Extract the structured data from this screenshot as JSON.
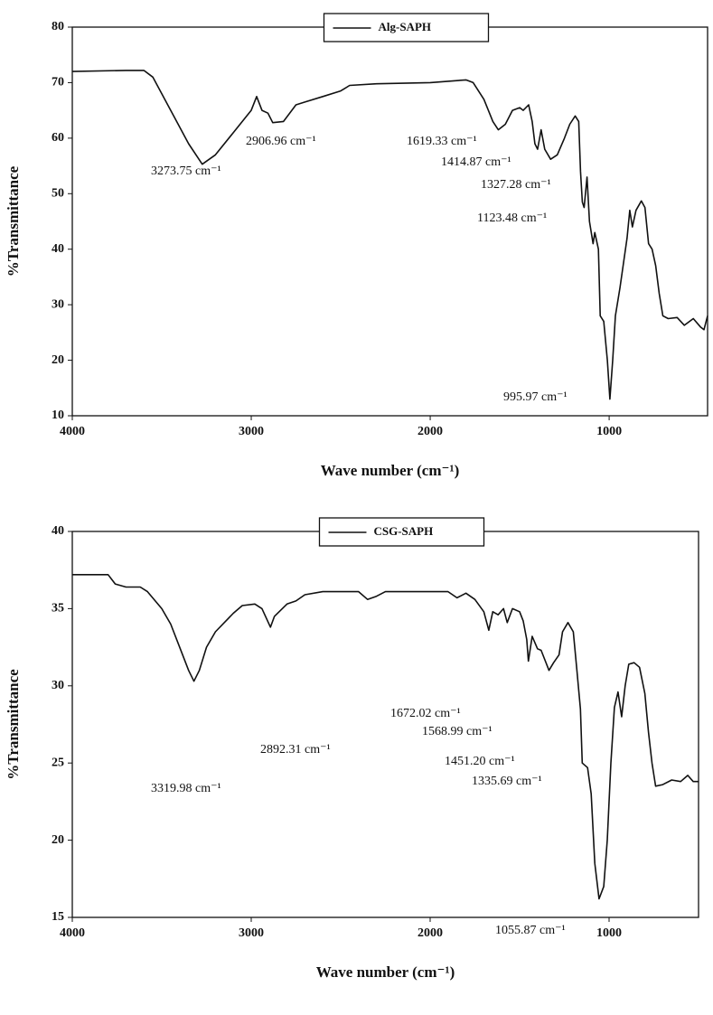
{
  "chart_data": [
    {
      "type": "line",
      "x": [
        4000,
        3700,
        3600,
        3550,
        3450,
        3350,
        3273.75,
        3200,
        3100,
        3000,
        2970,
        2940,
        2906.96,
        2880,
        2820,
        2750,
        2700,
        2600,
        2500,
        2450,
        2300,
        2000,
        1800,
        1760,
        1700,
        1650,
        1619.33,
        1580,
        1540,
        1500,
        1480,
        1450,
        1430,
        1414.87,
        1400,
        1380,
        1360,
        1327.28,
        1290,
        1250,
        1220,
        1190,
        1170,
        1160,
        1150,
        1140,
        1123.48,
        1110,
        1090,
        1080,
        1060,
        1050,
        1030,
        1010,
        995.97,
        980,
        965,
        940,
        900,
        885,
        870,
        850,
        820,
        800,
        780,
        760,
        740,
        720,
        700,
        670,
        620,
        580,
        530,
        490,
        470,
        450
      ],
      "series": [
        {
          "name": "Alg-SAPH",
          "color": "#111111",
          "values": [
            72,
            72.2,
            72.2,
            71,
            65,
            59,
            55.3,
            57,
            61,
            65,
            67.5,
            65,
            64.5,
            62.8,
            63,
            66,
            66.5,
            67.5,
            68.5,
            69.5,
            69.8,
            70,
            70.5,
            70,
            67,
            63,
            61.5,
            62.5,
            65,
            65.5,
            65,
            66,
            63,
            59,
            58,
            61.5,
            58,
            56.2,
            57,
            60,
            62.5,
            64,
            63,
            54,
            48.5,
            47.5,
            53,
            45,
            41,
            43,
            40,
            28,
            27,
            20,
            13,
            20,
            28,
            33,
            42,
            47,
            44,
            47,
            48.7,
            47.5,
            41,
            40,
            37,
            32,
            28,
            27.5,
            27.7,
            26.3,
            27.5,
            26,
            25.5,
            28
          ]
        }
      ],
      "xlim": [
        4000,
        450
      ],
      "xticks": [
        4000,
        3000,
        2000,
        1000
      ],
      "ylim": [
        10,
        80
      ],
      "yticks": [
        10,
        20,
        30,
        40,
        50,
        60,
        70,
        80
      ],
      "x_label": "Wave number (cm⁻¹)",
      "y_label": "%Transmittance",
      "legend": "upper center",
      "annotations": [
        "3273.75 cm⁻¹",
        "2906.96 cm⁻¹",
        "1619.33 cm⁻¹",
        "1414.87 cm⁻¹",
        "1327.28 cm⁻¹",
        "1123.48 cm⁻¹",
        "995.97 cm⁻¹"
      ]
    },
    {
      "type": "line",
      "x": [
        4000,
        3800,
        3760,
        3700,
        3620,
        3580,
        3500,
        3450,
        3400,
        3350,
        3319.98,
        3290,
        3250,
        3200,
        3100,
        3050,
        2980,
        2940,
        2920,
        2892.31,
        2870,
        2800,
        2750,
        2700,
        2600,
        2400,
        2350,
        2300,
        2250,
        1900,
        1850,
        1800,
        1750,
        1700,
        1672.02,
        1650,
        1620,
        1590,
        1568.99,
        1540,
        1500,
        1480,
        1460,
        1451.2,
        1430,
        1400,
        1380,
        1335.69,
        1310,
        1280,
        1260,
        1230,
        1200,
        1180,
        1160,
        1150,
        1120,
        1100,
        1080,
        1055.87,
        1030,
        1010,
        990,
        970,
        950,
        930,
        910,
        890,
        860,
        830,
        800,
        780,
        760,
        740,
        700,
        650,
        600,
        560,
        530,
        500
      ],
      "series": [
        {
          "name": "CSG-SAPH",
          "color": "#111111",
          "values": [
            37.2,
            37.2,
            36.6,
            36.4,
            36.4,
            36.1,
            35,
            34,
            32.5,
            31,
            30.3,
            31,
            32.5,
            33.5,
            34.7,
            35.2,
            35.3,
            35,
            34.5,
            33.8,
            34.5,
            35.3,
            35.5,
            35.9,
            36.1,
            36.1,
            35.6,
            35.8,
            36.1,
            36.1,
            35.7,
            36,
            35.6,
            34.8,
            33.6,
            34.8,
            34.6,
            35,
            34.1,
            35,
            34.8,
            34.2,
            33,
            31.6,
            33.2,
            32.4,
            32.3,
            31,
            31.5,
            32,
            33.5,
            34.1,
            33.5,
            31,
            28.5,
            25,
            24.7,
            23,
            18.5,
            16.2,
            17,
            20,
            25,
            28.6,
            29.6,
            28,
            30,
            31.4,
            31.5,
            31.2,
            29.5,
            27,
            25,
            23.5,
            23.6,
            23.9,
            23.8,
            24.2,
            23.8,
            23.8
          ]
        }
      ],
      "xlim": [
        4000,
        500
      ],
      "xticks": [
        4000,
        3000,
        2000,
        1000
      ],
      "ylim": [
        15,
        40
      ],
      "yticks": [
        15,
        20,
        25,
        30,
        35,
        40
      ],
      "x_label": "Wave number (cm⁻¹)",
      "y_label": "%Transmittance",
      "legend": "upper center",
      "annotations": [
        "3319.98 cm⁻¹",
        "2892.31 cm⁻¹",
        "1672.02 cm⁻¹",
        "1568.99 cm⁻¹",
        "1451.20 cm⁻¹",
        "1335.69 cm⁻¹",
        "1055.87 cm⁻¹"
      ]
    }
  ]
}
